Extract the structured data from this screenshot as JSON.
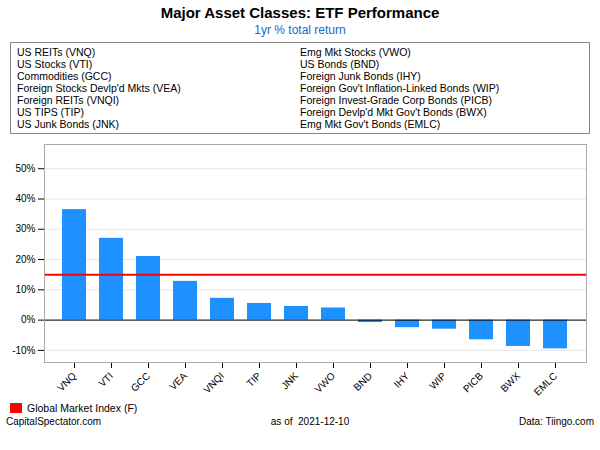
{
  "chart_data": {
    "type": "bar",
    "title": "Major Asset Classes: ETF Performance",
    "subtitle": "1yr % total return",
    "categories": [
      "VNQ",
      "VTI",
      "GCC",
      "VEA",
      "VNQI",
      "TIP",
      "JNK",
      "VWO",
      "BND",
      "IHY",
      "WIP",
      "PICB",
      "BWX",
      "EMLC"
    ],
    "values": [
      36.5,
      27.0,
      21.0,
      12.8,
      7.2,
      5.5,
      4.5,
      4.0,
      -0.8,
      -2.5,
      -3.0,
      -6.5,
      -8.7,
      -9.5
    ],
    "color": "#1E90FF",
    "ylim": [
      -14,
      58
    ],
    "yticks": [
      {
        "value": -10,
        "label": "-10%"
      },
      {
        "value": 0,
        "label": "0%"
      },
      {
        "value": 10,
        "label": "10%"
      },
      {
        "value": 20,
        "label": "20%"
      },
      {
        "value": 30,
        "label": "30%"
      },
      {
        "value": 40,
        "label": "40%"
      },
      {
        "value": 50,
        "label": "50%"
      }
    ],
    "grid": true,
    "ref_line": {
      "value": 15.0,
      "label": "Global Market Index (F)",
      "color": "red"
    },
    "legend": "lower left",
    "annotations": [
      [
        "US REITs (VNQ)",
        "US Stocks (VTI)",
        "Commodities (GCC)",
        "Foreign Stocks Devlp'd Mkts (VEA)",
        "Foreign REITs (VNQI)",
        "US TIPS (TIP)",
        "US Junk Bonds (JNK)"
      ],
      [
        "Emg Mkt Stocks (VWO)",
        "US Bonds (BND)",
        "Foreign Junk Bonds (IHY)",
        "Foreign Gov't Inflation-Linked Bonds (WIP)",
        "Foreign Invest-Grade Corp Bonds (PICB)",
        "Foreign Devlp'd Mkt Gov't Bonds (BWX)",
        "Emg Mkt Gov't Bonds (EMLC)"
      ]
    ],
    "footer": [
      "CapitalSpectator.com",
      "as of  2021-12-10",
      "Data: Tiingo.com"
    ]
  }
}
